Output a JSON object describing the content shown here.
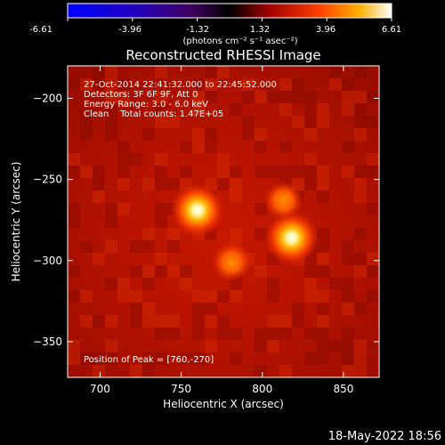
{
  "colorbar": {
    "ticks": [
      "-6.61",
      "-3.96",
      "-1.32",
      "1.32",
      "3.96",
      "6.61"
    ],
    "unit_label": "(photons cm⁻² s⁻¹ asec⁻²)"
  },
  "chart_data": {
    "type": "heatmap",
    "title": "Reconstructed RHESSI Image",
    "xlabel": "Heliocentric X (arcsec)",
    "ylabel": "Heliocentric Y (arcsec)",
    "xlim": [
      680,
      872
    ],
    "ylim": [
      -372,
      -180
    ],
    "x_ticks": [
      700,
      750,
      800,
      850
    ],
    "y_ticks": [
      -200,
      -250,
      -300,
      -350
    ],
    "colorbar_range": [
      -6.61,
      6.61
    ],
    "annotations": [
      "27-Oct-2014 22:41:32.000 to 22:45:52.000",
      "Detectors: 3F 6F 9F, Att 0",
      "Energy Range: 3.0 - 6.0 keV",
      "Clean    Total counts: 1.47E+05"
    ],
    "peak_label": "Position of Peak = [760,-270]",
    "sources": [
      {
        "x": 760,
        "y": -269,
        "intensity": 1.0
      },
      {
        "x": 818,
        "y": -286,
        "intensity": 0.85
      },
      {
        "x": 813,
        "y": -263,
        "intensity": 0.55
      },
      {
        "x": 781,
        "y": -301,
        "intensity": 0.45
      }
    ]
  },
  "footer": {
    "timestamp": "18-May-2022 18:56"
  }
}
